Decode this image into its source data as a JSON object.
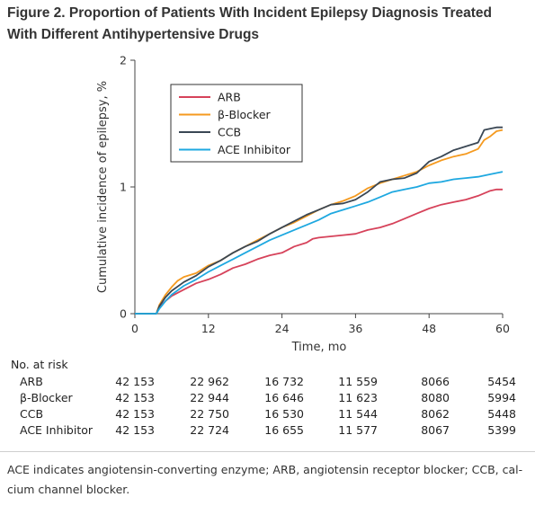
{
  "figure": {
    "title_line1": "Figure 2.  Proportion of Patients With Incident Epilepsy Diagnosis Treated",
    "title_line2": "With Different Antihypertensive Drugs"
  },
  "chart_data": {
    "type": "line",
    "xlabel": "Time, mo",
    "ylabel": "Cumulative incidence of epilepsy, %",
    "xlim": [
      0,
      60
    ],
    "ylim": [
      0,
      2
    ],
    "xticks": [
      0,
      12,
      24,
      36,
      48,
      60
    ],
    "yticks": [
      0,
      1,
      2
    ],
    "grid": false,
    "legend": "top-left",
    "series": [
      {
        "name": "ARB",
        "color": "#d6425a",
        "points": [
          [
            0,
            0
          ],
          [
            3.5,
            0
          ],
          [
            4,
            0.05
          ],
          [
            5,
            0.1
          ],
          [
            6,
            0.14
          ],
          [
            8,
            0.19
          ],
          [
            10,
            0.24
          ],
          [
            12,
            0.27
          ],
          [
            14,
            0.31
          ],
          [
            16,
            0.36
          ],
          [
            18,
            0.39
          ],
          [
            20,
            0.43
          ],
          [
            22,
            0.46
          ],
          [
            24,
            0.48
          ],
          [
            26,
            0.53
          ],
          [
            28,
            0.56
          ],
          [
            29,
            0.59
          ],
          [
            30,
            0.6
          ],
          [
            32,
            0.61
          ],
          [
            34,
            0.62
          ],
          [
            36,
            0.63
          ],
          [
            38,
            0.66
          ],
          [
            40,
            0.68
          ],
          [
            42,
            0.71
          ],
          [
            44,
            0.75
          ],
          [
            46,
            0.79
          ],
          [
            48,
            0.83
          ],
          [
            50,
            0.86
          ],
          [
            52,
            0.88
          ],
          [
            54,
            0.9
          ],
          [
            56,
            0.93
          ],
          [
            58,
            0.97
          ],
          [
            59,
            0.98
          ],
          [
            60,
            0.98
          ]
        ]
      },
      {
        "name": "β-Blocker",
        "color": "#f59a1f",
        "points": [
          [
            0,
            0
          ],
          [
            3.5,
            0
          ],
          [
            4,
            0.07
          ],
          [
            5,
            0.15
          ],
          [
            6,
            0.21
          ],
          [
            7,
            0.26
          ],
          [
            8,
            0.29
          ],
          [
            10,
            0.32
          ],
          [
            12,
            0.38
          ],
          [
            14,
            0.42
          ],
          [
            16,
            0.48
          ],
          [
            18,
            0.53
          ],
          [
            20,
            0.58
          ],
          [
            22,
            0.63
          ],
          [
            24,
            0.68
          ],
          [
            26,
            0.72
          ],
          [
            28,
            0.77
          ],
          [
            30,
            0.82
          ],
          [
            32,
            0.86
          ],
          [
            34,
            0.89
          ],
          [
            36,
            0.93
          ],
          [
            38,
            0.99
          ],
          [
            40,
            1.03
          ],
          [
            42,
            1.06
          ],
          [
            44,
            1.09
          ],
          [
            46,
            1.12
          ],
          [
            48,
            1.17
          ],
          [
            50,
            1.21
          ],
          [
            52,
            1.24
          ],
          [
            54,
            1.26
          ],
          [
            56,
            1.3
          ],
          [
            57,
            1.37
          ],
          [
            58,
            1.4
          ],
          [
            59,
            1.44
          ],
          [
            60,
            1.45
          ]
        ]
      },
      {
        "name": "CCB",
        "color": "#3a4754",
        "points": [
          [
            0,
            0
          ],
          [
            3.5,
            0
          ],
          [
            4,
            0.06
          ],
          [
            5,
            0.13
          ],
          [
            6,
            0.18
          ],
          [
            8,
            0.25
          ],
          [
            10,
            0.3
          ],
          [
            12,
            0.37
          ],
          [
            14,
            0.42
          ],
          [
            16,
            0.48
          ],
          [
            18,
            0.53
          ],
          [
            20,
            0.57
          ],
          [
            22,
            0.63
          ],
          [
            24,
            0.68
          ],
          [
            26,
            0.73
          ],
          [
            28,
            0.78
          ],
          [
            30,
            0.82
          ],
          [
            32,
            0.86
          ],
          [
            34,
            0.87
          ],
          [
            36,
            0.9
          ],
          [
            38,
            0.96
          ],
          [
            40,
            1.04
          ],
          [
            42,
            1.06
          ],
          [
            44,
            1.07
          ],
          [
            46,
            1.11
          ],
          [
            48,
            1.2
          ],
          [
            50,
            1.24
          ],
          [
            52,
            1.29
          ],
          [
            54,
            1.32
          ],
          [
            56,
            1.35
          ],
          [
            57,
            1.45
          ],
          [
            58,
            1.46
          ],
          [
            59,
            1.47
          ],
          [
            60,
            1.47
          ]
        ]
      },
      {
        "name": "ACE Inhibitor",
        "color": "#1ea8e0",
        "points": [
          [
            0,
            0
          ],
          [
            3.5,
            0
          ],
          [
            4,
            0.04
          ],
          [
            5,
            0.1
          ],
          [
            6,
            0.15
          ],
          [
            8,
            0.22
          ],
          [
            10,
            0.27
          ],
          [
            12,
            0.33
          ],
          [
            14,
            0.38
          ],
          [
            16,
            0.43
          ],
          [
            18,
            0.48
          ],
          [
            20,
            0.53
          ],
          [
            22,
            0.58
          ],
          [
            24,
            0.62
          ],
          [
            26,
            0.66
          ],
          [
            28,
            0.7
          ],
          [
            30,
            0.74
          ],
          [
            32,
            0.79
          ],
          [
            34,
            0.82
          ],
          [
            36,
            0.85
          ],
          [
            38,
            0.88
          ],
          [
            40,
            0.92
          ],
          [
            42,
            0.96
          ],
          [
            44,
            0.98
          ],
          [
            46,
            1.0
          ],
          [
            48,
            1.03
          ],
          [
            50,
            1.04
          ],
          [
            52,
            1.06
          ],
          [
            54,
            1.07
          ],
          [
            56,
            1.08
          ],
          [
            58,
            1.1
          ],
          [
            60,
            1.12
          ]
        ]
      }
    ]
  },
  "risk_table": {
    "heading": "No. at risk",
    "rows": [
      {
        "label": "ARB",
        "values": [
          "42 153",
          "22 962",
          "16 732",
          "11 559",
          "8066",
          "5454"
        ]
      },
      {
        "label": "β-Blocker",
        "values": [
          "42 153",
          "22 944",
          "16 646",
          "11 623",
          "8080",
          "5994"
        ]
      },
      {
        "label": "CCB",
        "values": [
          "42 153",
          "22 750",
          "16 530",
          "11 544",
          "8062",
          "5448"
        ]
      },
      {
        "label": "ACE Inhibitor",
        "values": [
          "42 153",
          "22 724",
          "16 655",
          "11 577",
          "8067",
          "5399"
        ]
      }
    ]
  },
  "footnote": {
    "line1": "ACE indicates angiotensin-converting enzyme; ARB, angiotensin receptor blocker; CCB, cal-",
    "line2": "cium channel blocker."
  }
}
